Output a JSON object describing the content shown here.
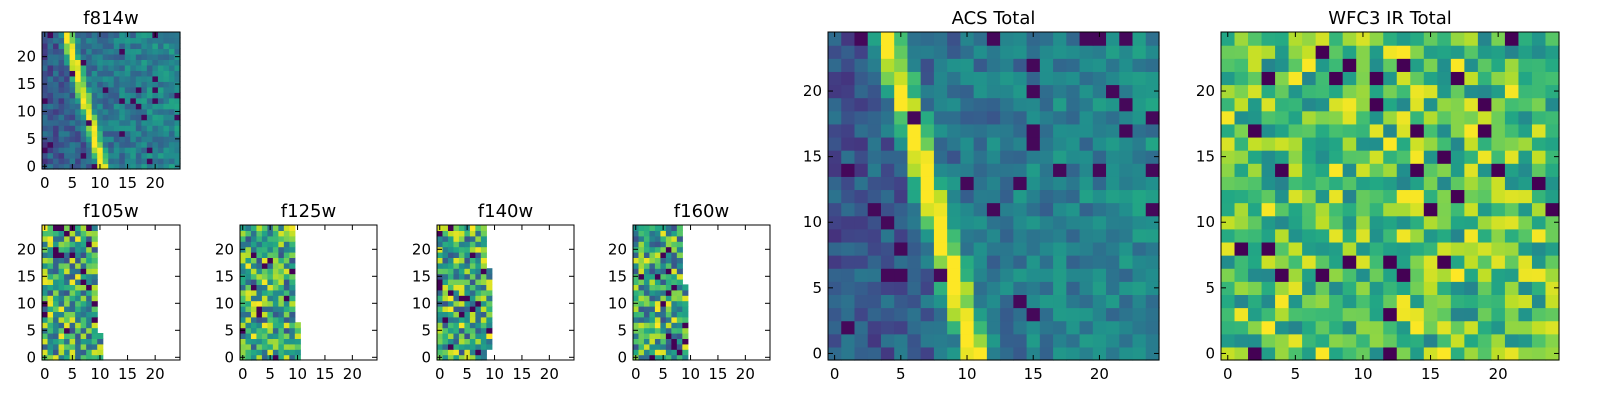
{
  "chart_data": [
    {
      "type": "heatmap",
      "title": "f814w",
      "size": 25,
      "xticks": [
        0,
        5,
        10,
        15,
        20
      ],
      "yticks": [
        0,
        5,
        10,
        15,
        20
      ],
      "coverage": [
        {
          "x0": 0,
          "x1": 25,
          "y0": 0,
          "y1": 25
        }
      ],
      "pattern": {
        "streak": [
          [
            0,
            11
          ],
          [
            24,
            4.5
          ]
        ],
        "field": "dark-left"
      }
    },
    {
      "type": "heatmap",
      "title": "f105w",
      "size": 25,
      "xticks": [
        0,
        5,
        10,
        15,
        20
      ],
      "yticks": [
        0,
        5,
        10,
        15,
        20
      ],
      "coverage": [
        {
          "x0": 0,
          "x1": 11,
          "y0": 0,
          "y1": 5
        },
        {
          "x0": 0,
          "x1": 10,
          "y0": 5,
          "y1": 25
        }
      ],
      "pattern": {
        "field": "noisy"
      }
    },
    {
      "type": "heatmap",
      "title": "f125w",
      "size": 25,
      "xticks": [
        0,
        5,
        10,
        15,
        20
      ],
      "yticks": [
        0,
        5,
        10,
        15,
        20
      ],
      "coverage": [
        {
          "x0": 0,
          "x1": 11,
          "y0": 0,
          "y1": 7
        },
        {
          "x0": 0,
          "x1": 10,
          "y0": 7,
          "y1": 25
        }
      ],
      "pattern": {
        "field": "noisy"
      }
    },
    {
      "type": "heatmap",
      "title": "f140w",
      "size": 25,
      "xticks": [
        0,
        5,
        10,
        15,
        20
      ],
      "yticks": [
        0,
        5,
        10,
        15,
        20
      ],
      "coverage": [
        {
          "x0": 0,
          "x1": 9,
          "y0": 0,
          "y1": 2
        },
        {
          "x0": 0,
          "x1": 10,
          "y0": 2,
          "y1": 17
        },
        {
          "x0": 0,
          "x1": 9.5,
          "y0": 17,
          "y1": 25
        }
      ],
      "pattern": {
        "field": "noisy"
      }
    },
    {
      "type": "heatmap",
      "title": "f160w",
      "size": 25,
      "xticks": [
        0,
        5,
        10,
        15,
        20
      ],
      "yticks": [
        0,
        5,
        10,
        15,
        20
      ],
      "coverage": [
        {
          "x0": 0,
          "x1": 10,
          "y0": 0,
          "y1": 14
        },
        {
          "x0": 0,
          "x1": 9.5,
          "y0": 14,
          "y1": 25
        }
      ],
      "pattern": {
        "field": "noisy"
      }
    },
    {
      "type": "heatmap",
      "title": "ACS Total",
      "size": 25,
      "xticks": [
        0,
        5,
        10,
        15,
        20
      ],
      "yticks": [
        0,
        5,
        10,
        15,
        20
      ],
      "coverage": [
        {
          "x0": 0,
          "x1": 25,
          "y0": 0,
          "y1": 25
        }
      ],
      "pattern": {
        "streak": [
          [
            0,
            11
          ],
          [
            24,
            4.5
          ]
        ],
        "field": "dark-left"
      }
    },
    {
      "type": "heatmap",
      "title": "WFC3 IR Total",
      "size": 25,
      "xticks": [
        0,
        5,
        10,
        15,
        20
      ],
      "yticks": [
        0,
        5,
        10,
        15,
        20
      ],
      "coverage": [
        {
          "x0": 0,
          "x1": 25,
          "y0": 0,
          "y1": 25
        }
      ],
      "pattern": {
        "field": "noisy-bright"
      }
    }
  ]
}
